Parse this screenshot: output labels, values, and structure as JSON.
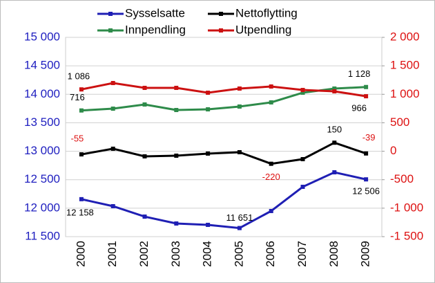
{
  "chart_data": {
    "type": "line",
    "categories": [
      "2000",
      "2001",
      "2002",
      "2003",
      "2004",
      "2005",
      "2006",
      "2007",
      "2008",
      "2009"
    ],
    "series": [
      {
        "name": "Sysselsatte",
        "color": "#1f1fb4",
        "axis": "y",
        "values": [
          12158,
          12035,
          11852,
          11731,
          11707,
          11651,
          11950,
          12375,
          12630,
          12506
        ],
        "value_labels": [
          "12 158",
          null,
          null,
          null,
          null,
          "11 651",
          null,
          null,
          null,
          "12 506"
        ]
      },
      {
        "name": "Nettoflytting",
        "color": "#000000",
        "axis": "y2",
        "values": [
          -55,
          44,
          -90,
          -78,
          -41,
          -17,
          -220,
          -139,
          150,
          -39
        ],
        "value_labels": [
          "-55",
          null,
          null,
          null,
          null,
          null,
          "-220",
          null,
          "150",
          "-39"
        ]
      },
      {
        "name": "Innpendling",
        "color": "#2e8b4a",
        "axis": "y2",
        "values": [
          716,
          748,
          821,
          724,
          736,
          785,
          858,
          1028,
          1101,
          1128
        ],
        "value_labels": [
          "716",
          null,
          null,
          null,
          null,
          null,
          null,
          null,
          null,
          "1 128"
        ]
      },
      {
        "name": "Utpendling",
        "color": "#cc1111",
        "axis": "y2",
        "values": [
          1086,
          1198,
          1113,
          1113,
          1028,
          1101,
          1137,
          1076,
          1052,
          966
        ],
        "value_labels": [
          "1 086",
          null,
          null,
          null,
          null,
          null,
          null,
          null,
          null,
          "966"
        ]
      }
    ],
    "ylim": [
      11500,
      15000
    ],
    "yticks": [
      {
        "value": 11500,
        "label": "11 500"
      },
      {
        "value": 12000,
        "label": "12 000"
      },
      {
        "value": 12500,
        "label": "12 500"
      },
      {
        "value": 13000,
        "label": "13 000"
      },
      {
        "value": 13500,
        "label": "13 500"
      },
      {
        "value": 14000,
        "label": "14 000"
      },
      {
        "value": 14500,
        "label": "14 500"
      },
      {
        "value": 15000,
        "label": "15 000"
      }
    ],
    "y2lim": [
      -1500,
      2000
    ],
    "y2ticks": [
      {
        "value": -1500,
        "label": "-1 500"
      },
      {
        "value": -1000,
        "label": "-1 000"
      },
      -500,
      0,
      500,
      {
        "value": 1000,
        "label": "1 000"
      },
      {
        "value": 1500,
        "label": "1 500"
      },
      {
        "value": 2000,
        "label": "2 000"
      }
    ],
    "grid": true,
    "legend": "top"
  }
}
